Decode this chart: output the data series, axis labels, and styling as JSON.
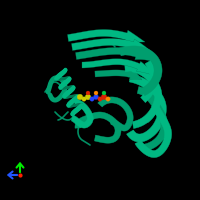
{
  "background_color": "#000000",
  "protein_color": "#009e6e",
  "protein_color_light": "#00b882",
  "protein_color_dark": "#007a55",
  "ligand_yellow": "#cccc00",
  "ligand_blue": "#2244ff",
  "ligand_red": "#dd2200",
  "ligand_orange": "#ff8800",
  "ligand_green": "#00cc44",
  "ligand_gray": "#888888",
  "axis_green": "#00ee00",
  "axis_blue": "#2255ff",
  "axis_red": "#ff2200",
  "figsize": [
    2.0,
    2.0
  ],
  "dpi": 100
}
